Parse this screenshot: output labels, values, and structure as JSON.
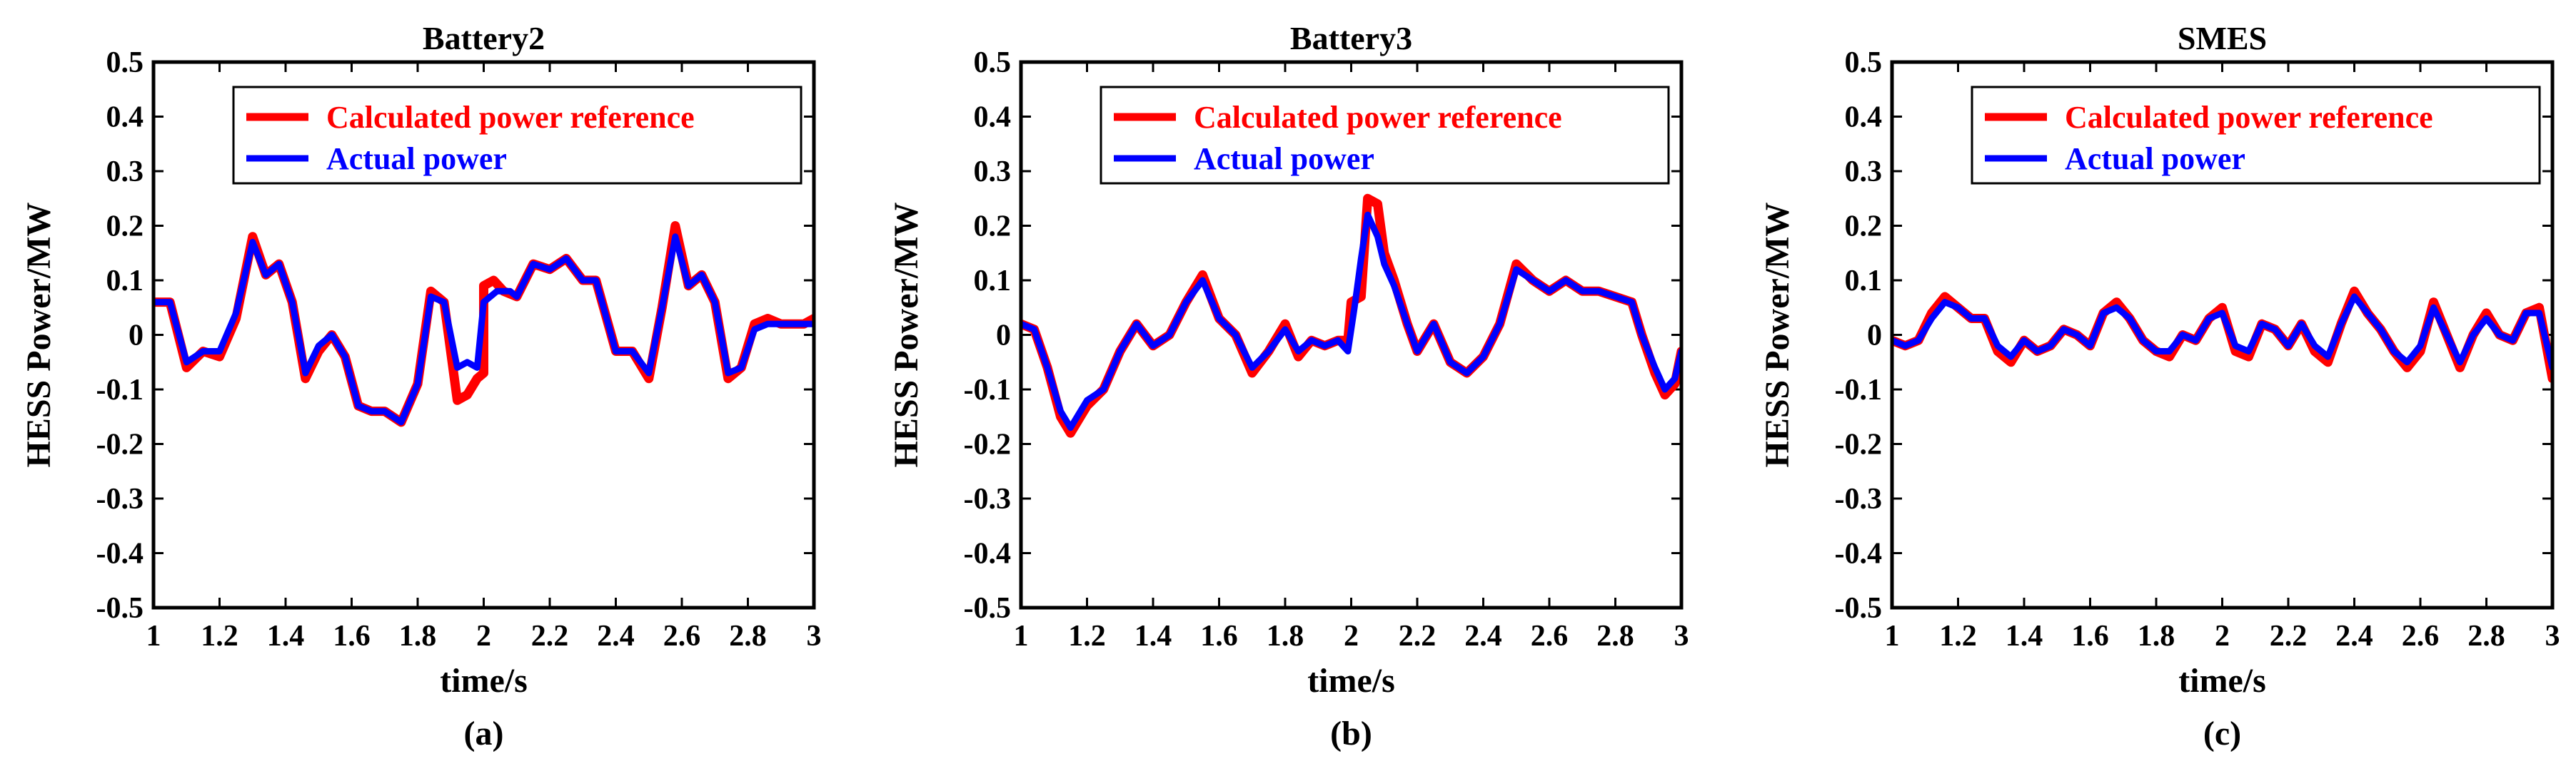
{
  "chart_data": [
    {
      "type": "line",
      "title": "Battery2",
      "xlabel": "time/s",
      "ylabel": "HESS Power/MW",
      "caption": "(a)",
      "xlim": [
        1,
        3
      ],
      "ylim": [
        -0.5,
        0.5
      ],
      "xticks": [
        "1",
        "1.2",
        "1.4",
        "1.6",
        "1.8",
        "2",
        "2.2",
        "2.4",
        "2.6",
        "2.8",
        "3"
      ],
      "yticks": [
        "-0.5",
        "-0.4",
        "-0.3",
        "-0.2",
        "-0.1",
        "0",
        "0.1",
        "0.2",
        "0.3",
        "0.4",
        "0.5"
      ],
      "legend": [
        "Calculated power reference",
        "Actual power"
      ],
      "series": [
        {
          "name": "Calculated power reference",
          "color": "#ff0000",
          "x": [
            1.0,
            1.05,
            1.1,
            1.15,
            1.2,
            1.25,
            1.3,
            1.34,
            1.38,
            1.42,
            1.46,
            1.5,
            1.54,
            1.58,
            1.62,
            1.66,
            1.7,
            1.75,
            1.8,
            1.84,
            1.88,
            1.92,
            1.95,
            1.98,
            2.0,
            2.0,
            2.03,
            2.06,
            2.06,
            2.1,
            2.15,
            2.2,
            2.25,
            2.3,
            2.34,
            2.4,
            2.45,
            2.5,
            2.54,
            2.58,
            2.62,
            2.66,
            2.7,
            2.74,
            2.78,
            2.82,
            2.86,
            2.9,
            2.94,
            2.97,
            3.0
          ],
          "y": [
            0.06,
            0.06,
            -0.06,
            -0.03,
            -0.04,
            0.03,
            0.18,
            0.11,
            0.13,
            0.06,
            -0.08,
            -0.03,
            0.0,
            -0.04,
            -0.13,
            -0.14,
            -0.14,
            -0.16,
            -0.09,
            0.08,
            0.06,
            -0.12,
            -0.11,
            -0.08,
            -0.07,
            0.09,
            0.1,
            0.08,
            0.08,
            0.07,
            0.13,
            0.12,
            0.14,
            0.1,
            0.1,
            -0.03,
            -0.03,
            -0.08,
            0.05,
            0.2,
            0.09,
            0.11,
            0.06,
            -0.08,
            -0.06,
            0.02,
            0.03,
            0.02,
            0.02,
            0.02,
            0.03
          ]
        },
        {
          "name": "Actual power",
          "color": "#0000ff",
          "x": [
            1.0,
            1.05,
            1.1,
            1.15,
            1.2,
            1.25,
            1.3,
            1.34,
            1.38,
            1.42,
            1.46,
            1.5,
            1.54,
            1.58,
            1.62,
            1.66,
            1.7,
            1.75,
            1.8,
            1.84,
            1.88,
            1.92,
            1.95,
            1.98,
            2.0,
            2.02,
            2.04,
            2.06,
            2.08,
            2.1,
            2.15,
            2.2,
            2.25,
            2.3,
            2.34,
            2.4,
            2.45,
            2.5,
            2.54,
            2.58,
            2.62,
            2.66,
            2.7,
            2.74,
            2.78,
            2.82,
            2.86,
            2.9,
            2.94,
            2.97,
            3.0
          ],
          "y": [
            0.06,
            0.06,
            -0.05,
            -0.03,
            -0.03,
            0.04,
            0.17,
            0.11,
            0.13,
            0.06,
            -0.07,
            -0.02,
            0.0,
            -0.04,
            -0.13,
            -0.14,
            -0.14,
            -0.16,
            -0.09,
            0.07,
            0.06,
            -0.06,
            -0.05,
            -0.06,
            0.06,
            0.07,
            0.08,
            0.08,
            0.08,
            0.07,
            0.13,
            0.12,
            0.14,
            0.1,
            0.1,
            -0.03,
            -0.03,
            -0.07,
            0.05,
            0.18,
            0.09,
            0.11,
            0.06,
            -0.07,
            -0.06,
            0.01,
            0.02,
            0.02,
            0.02,
            0.02,
            0.02
          ]
        }
      ]
    },
    {
      "type": "line",
      "title": "Battery3",
      "xlabel": "time/s",
      "ylabel": "HESS Power/MW",
      "caption": "(b)",
      "xlim": [
        1,
        3
      ],
      "ylim": [
        -0.5,
        0.5
      ],
      "xticks": [
        "1",
        "1.2",
        "1.4",
        "1.6",
        "1.8",
        "2",
        "2.2",
        "2.4",
        "2.6",
        "2.8",
        "3"
      ],
      "yticks": [
        "-0.5",
        "-0.4",
        "-0.3",
        "-0.2",
        "-0.1",
        "0",
        "0.1",
        "0.2",
        "0.3",
        "0.4",
        "0.5"
      ],
      "legend": [
        "Calculated power reference",
        "Actual power"
      ],
      "series": [
        {
          "name": "Calculated power reference",
          "color": "#ff0000",
          "x": [
            1.0,
            1.04,
            1.08,
            1.12,
            1.15,
            1.2,
            1.25,
            1.3,
            1.35,
            1.4,
            1.45,
            1.5,
            1.55,
            1.6,
            1.65,
            1.7,
            1.75,
            1.8,
            1.84,
            1.88,
            1.92,
            1.96,
            1.99,
            2.0,
            2.0,
            2.03,
            2.05,
            2.08,
            2.1,
            2.13,
            2.17,
            2.2,
            2.25,
            2.3,
            2.35,
            2.4,
            2.45,
            2.5,
            2.55,
            2.6,
            2.65,
            2.7,
            2.75,
            2.8,
            2.85,
            2.88,
            2.92,
            2.95,
            2.98,
            3.0
          ],
          "y": [
            0.02,
            0.01,
            -0.06,
            -0.15,
            -0.18,
            -0.13,
            -0.1,
            -0.03,
            0.02,
            -0.02,
            0.0,
            0.06,
            0.11,
            0.03,
            0.0,
            -0.07,
            -0.03,
            0.02,
            -0.04,
            -0.01,
            -0.02,
            -0.01,
            -0.01,
            0.06,
            0.06,
            0.07,
            0.25,
            0.24,
            0.15,
            0.1,
            0.02,
            -0.03,
            0.02,
            -0.05,
            -0.07,
            -0.04,
            0.02,
            0.13,
            0.1,
            0.08,
            0.1,
            0.08,
            0.08,
            0.07,
            0.06,
            0.0,
            -0.07,
            -0.11,
            -0.09,
            -0.03
          ]
        },
        {
          "name": "Actual power",
          "color": "#0000ff",
          "x": [
            1.0,
            1.04,
            1.08,
            1.12,
            1.15,
            1.2,
            1.25,
            1.3,
            1.35,
            1.4,
            1.45,
            1.5,
            1.55,
            1.6,
            1.65,
            1.7,
            1.75,
            1.8,
            1.84,
            1.88,
            1.92,
            1.96,
            1.99,
            2.01,
            2.03,
            2.05,
            2.08,
            2.1,
            2.13,
            2.17,
            2.2,
            2.25,
            2.3,
            2.35,
            2.4,
            2.45,
            2.5,
            2.55,
            2.6,
            2.65,
            2.7,
            2.75,
            2.8,
            2.85,
            2.88,
            2.92,
            2.95,
            2.98,
            3.0
          ],
          "y": [
            0.02,
            0.01,
            -0.06,
            -0.14,
            -0.17,
            -0.12,
            -0.1,
            -0.03,
            0.02,
            -0.02,
            0.0,
            0.06,
            0.1,
            0.03,
            0.0,
            -0.06,
            -0.03,
            0.01,
            -0.03,
            -0.01,
            -0.02,
            -0.01,
            -0.03,
            0.05,
            0.14,
            0.22,
            0.18,
            0.13,
            0.09,
            0.02,
            -0.03,
            0.02,
            -0.05,
            -0.07,
            -0.04,
            0.02,
            0.12,
            0.1,
            0.08,
            0.1,
            0.08,
            0.08,
            0.07,
            0.06,
            0.0,
            -0.06,
            -0.1,
            -0.08,
            -0.03
          ]
        }
      ]
    },
    {
      "type": "line",
      "title": "SMES",
      "xlabel": "time/s",
      "ylabel": "HESS Power/MW",
      "caption": "(c)",
      "xlim": [
        1,
        3
      ],
      "ylim": [
        -0.5,
        0.5
      ],
      "xticks": [
        "1",
        "1.2",
        "1.4",
        "1.6",
        "1.8",
        "2",
        "2.2",
        "2.4",
        "2.6",
        "2.8",
        "3"
      ],
      "yticks": [
        "-0.5",
        "-0.4",
        "-0.3",
        "-0.2",
        "-0.1",
        "0",
        "0.1",
        "0.2",
        "0.3",
        "0.4",
        "0.5"
      ],
      "legend": [
        "Calculated power reference",
        "Actual power"
      ],
      "series": [
        {
          "name": "Calculated power reference",
          "color": "#ff0000",
          "x": [
            1.0,
            1.04,
            1.08,
            1.12,
            1.16,
            1.2,
            1.24,
            1.28,
            1.32,
            1.36,
            1.4,
            1.44,
            1.48,
            1.52,
            1.56,
            1.6,
            1.64,
            1.68,
            1.72,
            1.76,
            1.8,
            1.84,
            1.88,
            1.92,
            1.96,
            2.0,
            2.04,
            2.08,
            2.12,
            2.16,
            2.2,
            2.24,
            2.28,
            2.32,
            2.36,
            2.4,
            2.44,
            2.48,
            2.52,
            2.56,
            2.6,
            2.64,
            2.68,
            2.72,
            2.76,
            2.8,
            2.84,
            2.88,
            2.92,
            2.96,
            3.0
          ],
          "y": [
            -0.01,
            -0.02,
            -0.01,
            0.04,
            0.07,
            0.05,
            0.03,
            0.03,
            -0.03,
            -0.05,
            -0.01,
            -0.03,
            -0.02,
            0.01,
            0.0,
            -0.02,
            0.04,
            0.06,
            0.03,
            -0.01,
            -0.03,
            -0.04,
            0.0,
            -0.01,
            0.03,
            0.05,
            -0.03,
            -0.04,
            0.02,
            0.01,
            -0.02,
            0.02,
            -0.03,
            -0.05,
            0.02,
            0.08,
            0.04,
            0.01,
            -0.03,
            -0.06,
            -0.03,
            0.06,
            0.0,
            -0.06,
            0.0,
            0.04,
            0.0,
            -0.01,
            0.04,
            0.05,
            -0.08
          ]
        },
        {
          "name": "Actual power",
          "color": "#0000ff",
          "x": [
            1.0,
            1.04,
            1.08,
            1.12,
            1.16,
            1.2,
            1.24,
            1.28,
            1.32,
            1.36,
            1.4,
            1.44,
            1.48,
            1.52,
            1.56,
            1.6,
            1.64,
            1.68,
            1.72,
            1.76,
            1.8,
            1.84,
            1.88,
            1.92,
            1.96,
            2.0,
            2.04,
            2.08,
            2.12,
            2.16,
            2.2,
            2.24,
            2.28,
            2.32,
            2.36,
            2.4,
            2.44,
            2.48,
            2.52,
            2.56,
            2.6,
            2.64,
            2.68,
            2.72,
            2.76,
            2.8,
            2.84,
            2.88,
            2.92,
            2.96,
            3.0
          ],
          "y": [
            -0.01,
            -0.02,
            -0.01,
            0.03,
            0.06,
            0.05,
            0.03,
            0.03,
            -0.02,
            -0.04,
            -0.01,
            -0.03,
            -0.02,
            0.01,
            0.0,
            -0.02,
            0.04,
            0.05,
            0.03,
            -0.01,
            -0.03,
            -0.03,
            0.0,
            -0.01,
            0.03,
            0.04,
            -0.02,
            -0.03,
            0.02,
            0.01,
            -0.02,
            0.02,
            -0.02,
            -0.04,
            0.02,
            0.07,
            0.04,
            0.01,
            -0.03,
            -0.05,
            -0.02,
            0.05,
            0.0,
            -0.05,
            0.0,
            0.03,
            0.0,
            -0.01,
            0.04,
            0.04,
            -0.06
          ]
        }
      ]
    }
  ]
}
